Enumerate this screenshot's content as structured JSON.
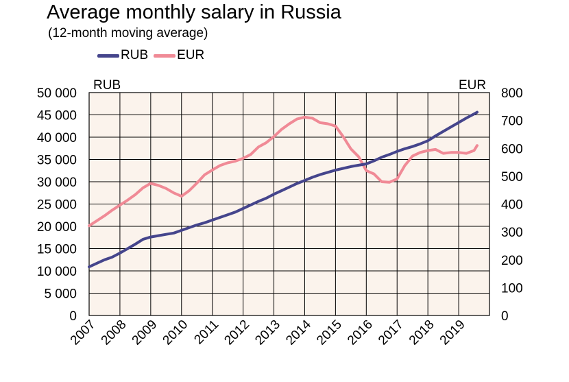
{
  "chart_data": {
    "type": "line",
    "title": "Average monthly salary in Russia",
    "subtitle": "(12-month moving average)",
    "left_axis_label": "RUB",
    "right_axis_label": "EUR",
    "x_ticks": [
      "2007",
      "2008",
      "2009",
      "2010",
      "2011",
      "2012",
      "2013",
      "2014",
      "2015",
      "2016",
      "2017",
      "2018",
      "2019"
    ],
    "xlim": [
      2007,
      2020
    ],
    "ylim_left": [
      0,
      50000
    ],
    "ylim_right": [
      0,
      800
    ],
    "left_ticks": [
      "0",
      "5 000",
      "10 000",
      "15 000",
      "20 000",
      "25 000",
      "30 000",
      "35 000",
      "40 000",
      "45 000",
      "50 000"
    ],
    "right_ticks": [
      "0",
      "100",
      "200",
      "300",
      "400",
      "500",
      "600",
      "700",
      "800"
    ],
    "grid": true,
    "legend_position": "top-left",
    "background_color": "#fbf3ec",
    "series": [
      {
        "name": "RUB",
        "axis": "left",
        "color": "#45458c",
        "x": [
          2007.0,
          2007.25,
          2007.5,
          2007.75,
          2008.0,
          2008.25,
          2008.5,
          2008.75,
          2009.0,
          2009.25,
          2009.5,
          2009.75,
          2010.0,
          2010.25,
          2010.5,
          2010.75,
          2011.0,
          2011.25,
          2011.5,
          2011.75,
          2012.0,
          2012.25,
          2012.5,
          2012.75,
          2013.0,
          2013.25,
          2013.5,
          2013.75,
          2014.0,
          2014.25,
          2014.5,
          2014.75,
          2015.0,
          2015.25,
          2015.5,
          2015.75,
          2016.0,
          2016.25,
          2016.5,
          2016.75,
          2017.0,
          2017.25,
          2017.5,
          2017.75,
          2018.0,
          2018.25,
          2018.5,
          2018.75,
          2019.0,
          2019.25,
          2019.5,
          2019.6
        ],
        "values": [
          10900,
          11700,
          12500,
          13100,
          14000,
          15000,
          16000,
          17100,
          17600,
          17900,
          18200,
          18500,
          19100,
          19700,
          20300,
          20800,
          21400,
          22000,
          22600,
          23200,
          24000,
          24800,
          25600,
          26300,
          27200,
          28000,
          28800,
          29600,
          30300,
          31000,
          31600,
          32100,
          32600,
          33000,
          33400,
          33700,
          34000,
          34700,
          35500,
          36100,
          36800,
          37400,
          37900,
          38500,
          39200,
          40300,
          41300,
          42300,
          43300,
          44300,
          45200,
          45600
        ]
      },
      {
        "name": "EUR",
        "axis": "right",
        "color": "#f08a96",
        "x": [
          2007.0,
          2007.25,
          2007.5,
          2007.75,
          2008.0,
          2008.25,
          2008.5,
          2008.75,
          2009.0,
          2009.25,
          2009.5,
          2009.75,
          2010.0,
          2010.25,
          2010.5,
          2010.75,
          2011.0,
          2011.25,
          2011.5,
          2011.75,
          2012.0,
          2012.25,
          2012.5,
          2012.75,
          2013.0,
          2013.25,
          2013.5,
          2013.75,
          2014.0,
          2014.25,
          2014.5,
          2014.75,
          2015.0,
          2015.25,
          2015.5,
          2015.75,
          2016.0,
          2016.25,
          2016.5,
          2016.75,
          2017.0,
          2017.25,
          2017.5,
          2017.75,
          2018.0,
          2018.25,
          2018.5,
          2018.75,
          2019.0,
          2019.25,
          2019.5,
          2019.6
        ],
        "values": [
          322,
          340,
          358,
          378,
          396,
          414,
          434,
          458,
          474,
          467,
          456,
          440,
          428,
          448,
          475,
          505,
          522,
          538,
          548,
          554,
          564,
          578,
          605,
          620,
          642,
          668,
          688,
          705,
          712,
          708,
          692,
          688,
          680,
          642,
          598,
          570,
          520,
          508,
          480,
          478,
          490,
          538,
          572,
          585,
          592,
          596,
          582,
          585,
          585,
          582,
          592,
          610
        ]
      }
    ]
  }
}
